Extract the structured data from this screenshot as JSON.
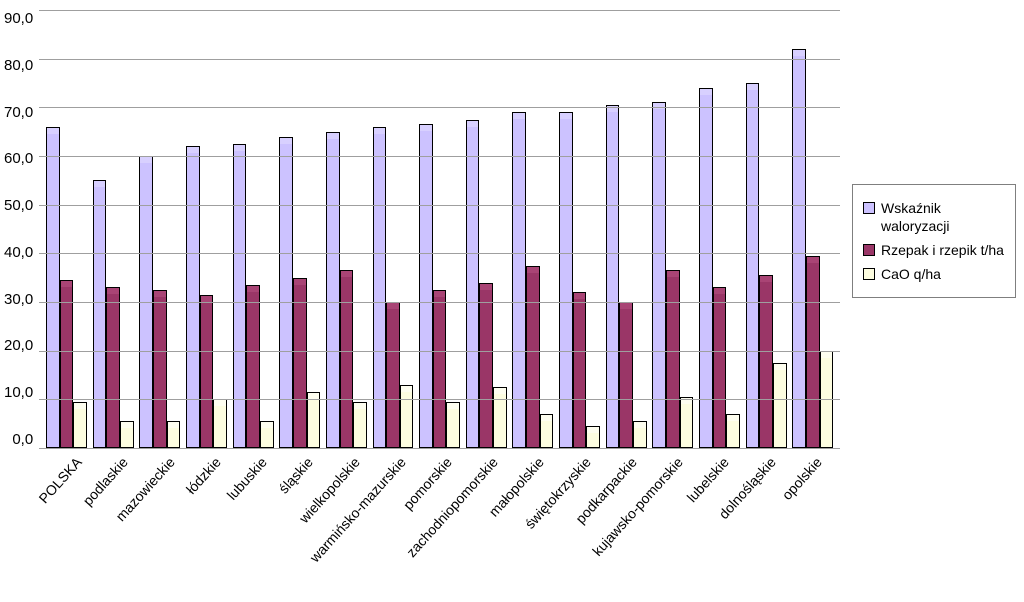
{
  "chart": {
    "type": "bar",
    "background_color": "#ffffff",
    "grid_color": "#9f9f9f",
    "label_fontsize": 15,
    "xlabel_fontsize": 14,
    "xlabel_rotation_deg": -48,
    "ylim": [
      0,
      90
    ],
    "ytick_step": 10,
    "yticks": [
      "0,0",
      "10,0",
      "20,0",
      "30,0",
      "40,0",
      "50,0",
      "60,0",
      "70,0",
      "80,0",
      "90,0"
    ],
    "series": [
      {
        "key": "waloryzacja",
        "label": "Wskaźnik waloryzacji",
        "fill": "#ccc2ff",
        "face_highlight": "#d8d0ff",
        "border": "#000000"
      },
      {
        "key": "rzepak",
        "label": "Rzepak i rzepik t/ha",
        "fill": "#9a3667",
        "face_highlight": "#a94475",
        "border": "#000000"
      },
      {
        "key": "cao",
        "label": "CaO q/ha",
        "fill": "#fdfde0",
        "face_highlight": "#fefef0",
        "border": "#000000"
      }
    ],
    "categories": [
      "POLSKA",
      "podlaskie",
      "mazowieckie",
      "łódzkie",
      "lubuskie",
      "śląskie",
      "wielkopolskie",
      "warmińsko-mazurskie",
      "pomorskie",
      "zachodniopomorskie",
      "małopolskie",
      "świętokrzyskie",
      "podkarpackie",
      "kujawsko-pomorskie",
      "lubelskie",
      "dolnośląskie",
      "opolskie"
    ],
    "data": {
      "waloryzacja": [
        66.0,
        55.0,
        60.0,
        62.0,
        62.5,
        64.0,
        65.0,
        66.0,
        66.5,
        67.5,
        69.0,
        69.0,
        70.5,
        71.0,
        74.0,
        75.0,
        82.0
      ],
      "rzepak": [
        34.5,
        33.0,
        32.5,
        31.5,
        33.5,
        35.0,
        36.5,
        30.0,
        32.5,
        34.0,
        37.5,
        32.0,
        30.0,
        36.5,
        33.0,
        35.5,
        39.5
      ],
      "cao": [
        9.5,
        5.5,
        5.5,
        10.0,
        5.5,
        11.5,
        9.5,
        13.0,
        9.5,
        12.5,
        7.0,
        4.5,
        5.5,
        10.5,
        7.0,
        17.5,
        20.0
      ]
    },
    "legend_border": "#7f7f7f",
    "bar_border_width": 1
  }
}
